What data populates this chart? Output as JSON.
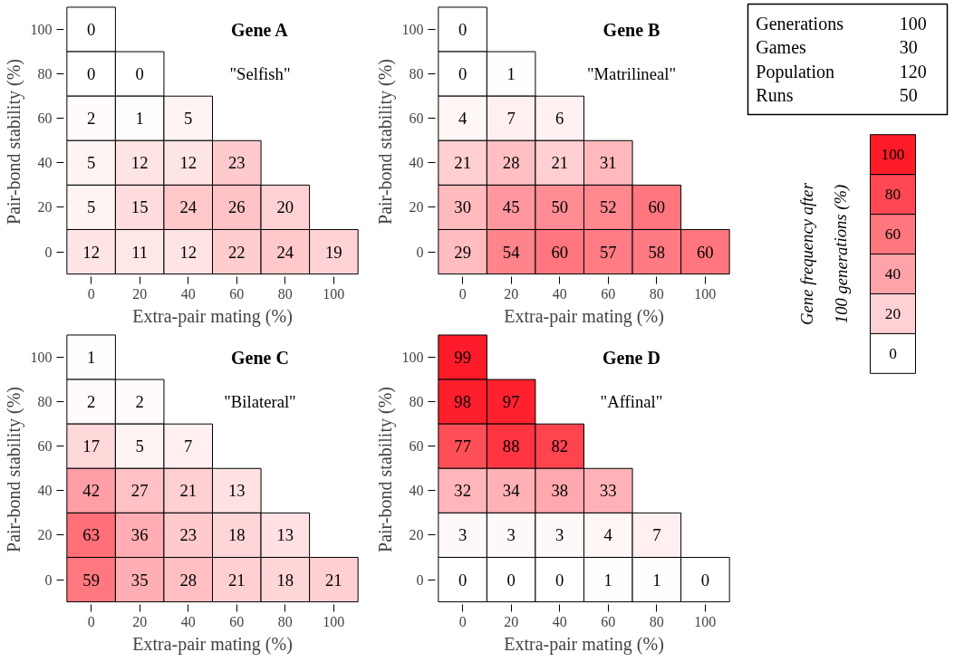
{
  "chart_data": [
    {
      "type": "heatmap",
      "data_labels": true,
      "title": "Gene A",
      "subtitle": "\"Selfish\"",
      "xlabel": "Extra-pair mating (%)",
      "ylabel": "Pair-bond stability (%)",
      "categories": [
        "0",
        "20",
        "40",
        "60",
        "80",
        "100"
      ],
      "y_categories": [
        "100",
        "80",
        "60",
        "40",
        "20",
        "0"
      ],
      "cells": [
        [
          0,
          null,
          null,
          null,
          null,
          null
        ],
        [
          0,
          0,
          null,
          null,
          null,
          null
        ],
        [
          2,
          1,
          5,
          null,
          null,
          null
        ],
        [
          5,
          12,
          12,
          23,
          null,
          null
        ],
        [
          5,
          15,
          24,
          26,
          20,
          null
        ],
        [
          12,
          11,
          12,
          22,
          24,
          19
        ]
      ]
    },
    {
      "type": "heatmap",
      "data_labels": true,
      "title": "Gene B",
      "subtitle": "\"Matrilineal\"",
      "xlabel": "Extra-pair mating (%)",
      "ylabel": "Pair-bond stability (%)",
      "categories": [
        "0",
        "20",
        "40",
        "60",
        "80",
        "100"
      ],
      "y_categories": [
        "100",
        "80",
        "60",
        "40",
        "20",
        "0"
      ],
      "cells": [
        [
          0,
          null,
          null,
          null,
          null,
          null
        ],
        [
          0,
          1,
          null,
          null,
          null,
          null
        ],
        [
          4,
          7,
          6,
          null,
          null,
          null
        ],
        [
          21,
          28,
          21,
          31,
          null,
          null
        ],
        [
          30,
          45,
          50,
          52,
          60,
          null
        ],
        [
          29,
          54,
          60,
          57,
          58,
          60
        ]
      ]
    },
    {
      "type": "heatmap",
      "data_labels": true,
      "title": "Gene C",
      "subtitle": "\"Bilateral\"",
      "xlabel": "Extra-pair mating (%)",
      "ylabel": "Pair-bond stability (%)",
      "categories": [
        "0",
        "20",
        "40",
        "60",
        "80",
        "100"
      ],
      "y_categories": [
        "100",
        "80",
        "60",
        "40",
        "20",
        "0"
      ],
      "cells": [
        [
          1,
          null,
          null,
          null,
          null,
          null
        ],
        [
          2,
          2,
          null,
          null,
          null,
          null
        ],
        [
          17,
          5,
          7,
          null,
          null,
          null
        ],
        [
          42,
          27,
          21,
          13,
          null,
          null
        ],
        [
          63,
          36,
          23,
          18,
          13,
          null
        ],
        [
          59,
          35,
          28,
          21,
          18,
          21
        ]
      ]
    },
    {
      "type": "heatmap",
      "data_labels": true,
      "title": "Gene D",
      "subtitle": "\"Affinal\"",
      "xlabel": "Extra-pair mating (%)",
      "ylabel": "Pair-bond stability (%)",
      "categories": [
        "0",
        "20",
        "40",
        "60",
        "80",
        "100"
      ],
      "y_categories": [
        "100",
        "80",
        "60",
        "40",
        "20",
        "0"
      ],
      "cells": [
        [
          99,
          null,
          null,
          null,
          null,
          null
        ],
        [
          98,
          97,
          null,
          null,
          null,
          null
        ],
        [
          77,
          88,
          82,
          null,
          null,
          null
        ],
        [
          32,
          34,
          38,
          33,
          null,
          null
        ],
        [
          3,
          3,
          3,
          4,
          7,
          null
        ],
        [
          0,
          0,
          0,
          1,
          1,
          0
        ]
      ],
      "clabel": "Gene frequency after 100 generations (%)",
      "clim": [
        0,
        100
      ],
      "cticks": [
        0,
        20,
        40,
        60,
        80,
        100
      ]
    },
    {
      "type": "other",
      "annotations": [
        "Generations",
        "100",
        "Games",
        "30",
        "Population",
        "120",
        "Runs",
        "50"
      ]
    }
  ]
}
